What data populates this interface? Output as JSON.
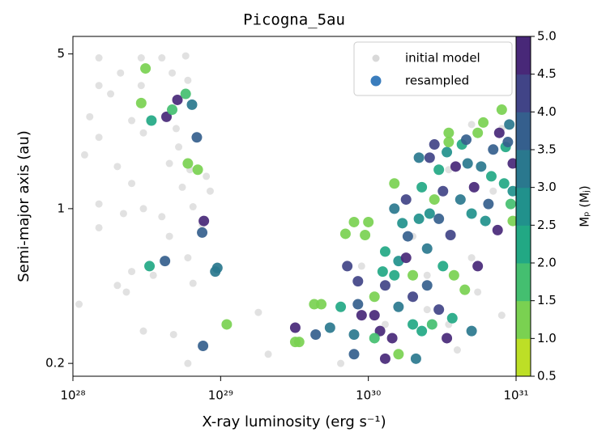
{
  "chart_data": {
    "type": "scatter",
    "title": "Picogna_5au",
    "xlabel": "X-ray luminosity (erg s⁻¹)",
    "ylabel": "Semi-major axis (au)",
    "xlog": true,
    "ylog": true,
    "xlim": [
      1e+28,
      1e+31
    ],
    "ylim": [
      0.175,
      6.0
    ],
    "xticks": [
      {
        "value": 1e+28,
        "label": "10²⁸"
      },
      {
        "value": 1e+29,
        "label": "10²⁹"
      },
      {
        "value": 1e+30,
        "label": "10³⁰"
      },
      {
        "value": 1e+31,
        "label": "10³¹"
      }
    ],
    "yticks": [
      0.2,
      1,
      5
    ],
    "legend": "upper right",
    "series": [
      {
        "name": "initial model",
        "color": "#d9d9d9",
        "x": [
          1.5e+28,
          2.9e+28,
          4e+28,
          5.8e+28,
          2.1e+28,
          1.5e+28,
          2.9e+28,
          1.8e+28,
          4.7e+28,
          6e+28,
          1.3e+28,
          2.5e+28,
          5e+28,
          1.5e+28,
          3e+28,
          5.2e+28,
          1.2e+28,
          2e+28,
          4.5e+28,
          6.2e+28,
          8e+28,
          2.5e+28,
          5.5e+28,
          8.5e+28,
          1.5e+28,
          3e+28,
          6.5e+28,
          2.2e+28,
          4e+28,
          7.5e+28,
          1.5e+28,
          4.5e+28,
          6e+28,
          9.5e+28,
          2.5e+28,
          3.5e+28,
          2e+28,
          6.5e+28,
          1.1e+28,
          2.3e+28,
          3e+28,
          4.8e+28,
          6e+28,
          2.1e+29,
          6.5e+29,
          9e+29,
          2.5e+30,
          5e+30,
          8e+30,
          5e+30,
          3.5e+30,
          7e+30,
          2e+30,
          5.5e+30,
          2.5e+30,
          3.5e+30,
          8e+30,
          1.3e+30,
          4e+30,
          1.8e+29
        ],
        "y": [
          4.8,
          4.8,
          4.8,
          4.9,
          4.1,
          3.6,
          3.6,
          3.3,
          4.1,
          3.8,
          2.6,
          2.5,
          2.3,
          2.1,
          2.2,
          1.9,
          1.75,
          1.55,
          1.6,
          1.5,
          1.4,
          1.3,
          1.25,
          1.2,
          1.05,
          1.0,
          1.02,
          0.95,
          0.92,
          0.85,
          0.82,
          0.75,
          0.6,
          0.55,
          0.52,
          0.5,
          0.45,
          0.46,
          0.37,
          0.42,
          0.28,
          0.27,
          0.2,
          0.22,
          0.2,
          0.55,
          0.5,
          0.6,
          2.3,
          2.4,
          1.5,
          1.2,
          0.75,
          0.42,
          0.35,
          0.3,
          0.33,
          0.3,
          0.23,
          0.34
        ]
      },
      {
        "name": "resampled",
        "color": "#3a7dbd",
        "x": [
          2.9e+28,
          3.1e+28,
          4.3e+28,
          5.1e+28,
          4.7e+28,
          3.4e+28,
          5.8e+28,
          6.4e+28,
          6.9e+28,
          6e+28,
          7e+28,
          7.7e+28,
          7.5e+28,
          4.2e+28,
          3.3e+28,
          9.5e+28,
          9.2e+28,
          1.1e+29,
          7.6e+28,
          3.2e+29,
          3.2e+29,
          3.4e+29,
          4.3e+29,
          4.8e+29,
          5.5e+29,
          6.5e+29,
          4.4e+29,
          7e+29,
          8e+29,
          7.2e+29,
          8.5e+29,
          8.5e+29,
          8e+29,
          8e+29,
          9e+29,
          9.5e+29,
          1e+30,
          1.1e+30,
          1.1e+30,
          1.2e+30,
          1.25e+30,
          1.3e+30,
          1.3e+30,
          1.45e+30,
          1.5e+30,
          1.5e+30,
          1.5e+30,
          1.6e+30,
          1.7e+30,
          1.6e+30,
          1.6e+30,
          1.8e+30,
          1.8e+30,
          1.85e+30,
          2e+30,
          2e+30,
          2.1e+30,
          2e+30,
          2.2e+30,
          2.2e+30,
          2.3e+30,
          2.3e+30,
          2.5e+30,
          2.5e+30,
          2.6e+30,
          2.6e+30,
          2.7e+30,
          2.8e+30,
          2.8e+30,
          3e+30,
          3e+30,
          3e+30,
          3.2e+30,
          3.2e+30,
          3.4e+30,
          3.4e+30,
          3.5e+30,
          3.6e+30,
          3.7e+30,
          3.8e+30,
          3.9e+30,
          3.5e+30,
          4.2e+30,
          4.3e+30,
          4.5e+30,
          4.6e+30,
          4.7e+30,
          5e+30,
          5e+30,
          5.2e+30,
          5.5e+30,
          5.5e+30,
          5.8e+30,
          6e+30,
          6.2e+30,
          6.5e+30,
          6.8e+30,
          7e+30,
          7.5e+30,
          7.7e+30,
          8e+30,
          8.3e+30,
          8.5e+30,
          8.8e+30,
          9e+30,
          9.2e+30,
          9.5e+30,
          9.5e+30,
          9.5e+30,
          1.3e+30,
          1.1e+30
        ],
        "y": [
          3.0,
          4.3,
          2.6,
          3.1,
          2.8,
          2.5,
          3.3,
          2.95,
          2.1,
          1.6,
          1.5,
          0.88,
          0.78,
          0.58,
          0.55,
          0.54,
          0.52,
          0.3,
          0.24,
          0.29,
          0.25,
          0.25,
          0.37,
          0.37,
          0.29,
          0.36,
          0.27,
          0.77,
          0.87,
          0.55,
          0.47,
          0.37,
          0.27,
          0.22,
          0.33,
          0.76,
          0.87,
          0.4,
          0.33,
          0.28,
          0.52,
          0.64,
          0.21,
          0.26,
          0.5,
          1.3,
          1.0,
          0.58,
          0.86,
          0.36,
          0.22,
          0.6,
          1.1,
          0.75,
          0.5,
          0.3,
          0.21,
          0.4,
          0.9,
          1.7,
          0.28,
          1.25,
          0.66,
          0.45,
          1.7,
          0.95,
          0.3,
          1.95,
          1.1,
          0.9,
          0.35,
          1.5,
          0.55,
          1.2,
          0.26,
          1.8,
          2.0,
          0.76,
          0.32,
          0.5,
          1.55,
          2.2,
          1.1,
          1.95,
          0.43,
          2.05,
          1.6,
          0.28,
          0.95,
          1.25,
          2.2,
          0.55,
          1.55,
          2.45,
          0.88,
          1.05,
          1.4,
          1.85,
          0.8,
          2.2,
          2.8,
          1.3,
          1.9,
          2.0,
          2.4,
          1.05,
          1.6,
          1.2,
          0.88,
          0.45,
          0.26
        ],
        "mass": [
          1.2,
          1.3,
          4.8,
          4.6,
          1.7,
          2.1,
          1.7,
          3.3,
          3.6,
          1.0,
          1.2,
          4.6,
          3.5,
          3.6,
          2.1,
          3.2,
          3.4,
          1.3,
          3.6,
          4.7,
          1.3,
          1.3,
          1.0,
          1.4,
          3.4,
          2.2,
          3.6,
          1.1,
          1.1,
          4.0,
          4.2,
          3.5,
          3.4,
          3.6,
          4.5,
          1.0,
          1.0,
          1.2,
          4.6,
          4.8,
          2.1,
          2.4,
          4.6,
          4.7,
          2.4,
          1.2,
          3.2,
          2.8,
          2.6,
          3.1,
          1.0,
          4.7,
          4.4,
          3.7,
          1.2,
          2.0,
          3.0,
          4.4,
          2.9,
          3.2,
          2.2,
          2.4,
          3.4,
          3.6,
          4.3,
          2.6,
          1.5,
          4.0,
          1.0,
          3.8,
          4.2,
          2.2,
          2.3,
          4.1,
          4.7,
          2.9,
          1.3,
          4.0,
          2.4,
          1.3,
          4.6,
          1.0,
          3.2,
          2.4,
          1.2,
          3.8,
          3.4,
          3.3,
          2.8,
          4.6,
          1.3,
          4.7,
          3.0,
          1.0,
          2.6,
          3.9,
          2.3,
          3.6,
          4.7,
          4.6,
          1.2,
          2.2,
          2.0,
          3.6,
          3.4,
          1.6,
          4.8,
          2.6,
          1.2,
          4.2,
          1.9
        ]
      }
    ],
    "colorbar": {
      "label": "Mₚ (Mⱼ)",
      "clim": [
        0.5,
        5.0
      ],
      "ticks": [
        0.5,
        {
          "value": 1.0,
          "label": "1.0"
        },
        1.5,
        {
          "value": 2.0,
          "label": "2.0"
        },
        2.5,
        {
          "value": 3.0,
          "label": "3.0"
        },
        3.5,
        {
          "value": 4.0,
          "label": "4.0"
        },
        4.5,
        {
          "value": 5.0,
          "label": "5.0"
        }
      ],
      "colors": [
        "#bddf26",
        "#7ad151",
        "#44bf70",
        "#22a884",
        "#21918c",
        "#2a788e",
        "#355f8d",
        "#414487",
        "#482878"
      ]
    }
  }
}
